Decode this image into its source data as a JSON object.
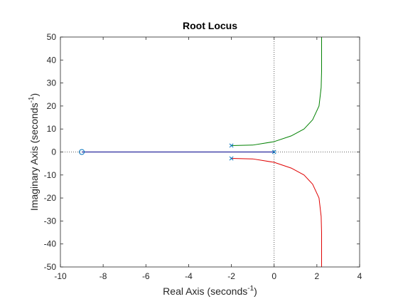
{
  "chart_data": {
    "type": "line",
    "title": "Root Locus",
    "xlabel": {
      "main": "Real Axis (seconds",
      "sup": "-1",
      "tail": ")"
    },
    "ylabel": {
      "main": "Imaginary Axis (seconds",
      "sup": "-1",
      "tail": ")"
    },
    "xlim": [
      -10,
      4
    ],
    "ylim": [
      -50,
      50
    ],
    "xticks": [
      -10,
      -8,
      -6,
      -4,
      -2,
      0,
      2,
      4
    ],
    "yticks": [
      -50,
      -40,
      -30,
      -20,
      -10,
      0,
      10,
      20,
      30,
      40,
      50
    ],
    "grid": false,
    "reference_lines": [
      "x = 0",
      "y = 0"
    ],
    "colors": {
      "axes": "#262626",
      "reference": "#333333",
      "branch_real": "#00008b",
      "branch_upper": "#008000",
      "branch_lower": "#e00000",
      "marker": "#0072bd"
    },
    "poles": [
      {
        "x": 0,
        "y": 0
      },
      {
        "x": -2,
        "y": 2.8
      },
      {
        "x": -2,
        "y": -2.8
      }
    ],
    "zeros": [
      {
        "x": -9,
        "y": 0
      }
    ],
    "series": [
      {
        "color_key": "branch_real",
        "points": [
          [
            -9,
            0
          ],
          [
            0,
            0
          ]
        ]
      },
      {
        "color_key": "branch_upper",
        "points": [
          [
            -2,
            2.8
          ],
          [
            -1,
            3.0
          ],
          [
            0,
            4.5
          ],
          [
            0.8,
            7
          ],
          [
            1.4,
            10
          ],
          [
            1.8,
            14
          ],
          [
            2.1,
            20
          ],
          [
            2.2,
            28
          ],
          [
            2.22,
            35
          ],
          [
            2.22,
            50
          ]
        ]
      },
      {
        "color_key": "branch_lower",
        "points": [
          [
            -2,
            -2.8
          ],
          [
            -1,
            -3.0
          ],
          [
            0,
            -4.5
          ],
          [
            0.8,
            -7
          ],
          [
            1.4,
            -10
          ],
          [
            1.8,
            -14
          ],
          [
            2.1,
            -20
          ],
          [
            2.2,
            -28
          ],
          [
            2.22,
            -35
          ],
          [
            2.22,
            -50
          ]
        ]
      }
    ]
  }
}
